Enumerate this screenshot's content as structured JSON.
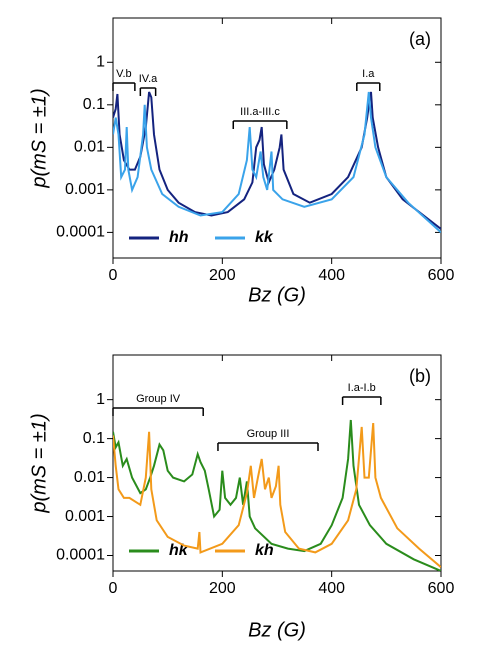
{
  "chart_data": [
    {
      "type": "line",
      "panel_label": "(a)",
      "x_label": "Bz (G)",
      "y_label": "p(mS = ±1)",
      "xlim": [
        0,
        600
      ],
      "xticks": [
        0,
        200,
        400,
        600
      ],
      "ylim": [
        2.5e-05,
        11
      ],
      "yticks": [
        1,
        0.1,
        0.01,
        0.001,
        0.0001
      ],
      "log_y": true,
      "legend": "lower left",
      "annotations": [
        {
          "text": "V.b",
          "x": [
            0,
            40
          ]
        },
        {
          "text": "IV.a",
          "x": [
            50,
            78
          ]
        },
        {
          "text": "III.a-III.c",
          "x": [
            220,
            318
          ]
        },
        {
          "text": "I.a",
          "x": [
            446,
            488
          ]
        }
      ],
      "series": [
        {
          "name": "hh",
          "color": "#14237f",
          "x": [
            0,
            5,
            8,
            12,
            20,
            30,
            40,
            50,
            60,
            66,
            70,
            75,
            85,
            100,
            120,
            150,
            180,
            210,
            240,
            255,
            262,
            268,
            272,
            276,
            285,
            295,
            305,
            308,
            312,
            330,
            360,
            400,
            430,
            455,
            465,
            470,
            472,
            475,
            485,
            500,
            530,
            560,
            600
          ],
          "values": [
            0.05,
            0.08,
            0.18,
            0.02,
            0.005,
            0.003,
            0.003,
            0.006,
            0.03,
            0.2,
            0.15,
            0.02,
            0.003,
            0.001,
            0.0005,
            0.0003,
            0.00025,
            0.0003,
            0.0006,
            0.0015,
            0.01,
            0.015,
            0.03,
            0.004,
            0.0015,
            0.003,
            0.01,
            0.02,
            0.003,
            0.0008,
            0.0005,
            0.0008,
            0.002,
            0.01,
            0.05,
            0.15,
            0.2,
            0.05,
            0.01,
            0.002,
            0.0006,
            0.0003,
            0.00012
          ]
        },
        {
          "name": "kk",
          "color": "#3aa3ea",
          "x": [
            0,
            5,
            10,
            15,
            22,
            25,
            28,
            35,
            45,
            55,
            58,
            62,
            70,
            90,
            120,
            160,
            200,
            230,
            245,
            250,
            255,
            262,
            270,
            275,
            282,
            290,
            293,
            310,
            350,
            400,
            440,
            460,
            468,
            472,
            480,
            500,
            540,
            600
          ],
          "values": [
            0.02,
            0.05,
            0.02,
            0.002,
            0.003,
            0.03,
            0.003,
            0.001,
            0.002,
            0.02,
            0.1,
            0.01,
            0.003,
            0.0008,
            0.0004,
            0.00025,
            0.0003,
            0.0008,
            0.005,
            0.03,
            0.003,
            0.002,
            0.008,
            0.002,
            0.001,
            0.008,
            0.001,
            0.0006,
            0.0004,
            0.0006,
            0.002,
            0.02,
            0.2,
            0.05,
            0.01,
            0.002,
            0.0005,
            0.0001
          ]
        }
      ]
    },
    {
      "type": "line",
      "panel_label": "(b)",
      "x_label": "Bz (G)",
      "y_label": "p(mS = ±1)",
      "xlim": [
        0,
        600
      ],
      "xticks": [
        0,
        200,
        400,
        600
      ],
      "ylim": [
        4e-05,
        14
      ],
      "yticks": [
        1,
        0.1,
        0.01,
        0.001,
        0.0001
      ],
      "log_y": true,
      "legend": "lower left",
      "annotations": [
        {
          "text": "Group IV",
          "x": [
            0,
            165
          ]
        },
        {
          "text": "Group III",
          "x": [
            192,
            375
          ]
        },
        {
          "text": "I.a-I.b",
          "x": [
            420,
            490
          ]
        }
      ],
      "series": [
        {
          "name": "hk",
          "color": "#2a8c1c",
          "x": [
            0,
            5,
            10,
            18,
            25,
            35,
            50,
            60,
            68,
            75,
            85,
            92,
            100,
            110,
            130,
            145,
            155,
            160,
            168,
            175,
            185,
            195,
            200,
            205,
            215,
            225,
            232,
            238,
            245,
            250,
            260,
            290,
            320,
            350,
            380,
            400,
            420,
            430,
            435,
            440,
            450,
            470,
            500,
            550,
            600
          ],
          "values": [
            0.15,
            0.06,
            0.08,
            0.02,
            0.03,
            0.01,
            0.004,
            0.005,
            0.01,
            0.02,
            0.07,
            0.05,
            0.015,
            0.01,
            0.008,
            0.012,
            0.04,
            0.025,
            0.015,
            0.005,
            0.001,
            0.0015,
            0.015,
            0.003,
            0.002,
            0.003,
            0.01,
            0.002,
            0.008,
            0.001,
            0.0005,
            0.0002,
            0.00015,
            0.00013,
            0.0002,
            0.0006,
            0.003,
            0.03,
            0.3,
            0.02,
            0.002,
            0.0006,
            0.0002,
            8e-05,
            4e-05
          ]
        },
        {
          "name": "kh",
          "color": "#f39a1a",
          "x": [
            0,
            5,
            10,
            20,
            30,
            50,
            60,
            66,
            70,
            80,
            100,
            130,
            155,
            158,
            160,
            200,
            230,
            245,
            252,
            258,
            265,
            272,
            278,
            285,
            290,
            298,
            303,
            306,
            315,
            340,
            370,
            400,
            430,
            445,
            455,
            460,
            468,
            476,
            480,
            490,
            520,
            560,
            600
          ],
          "values": [
            0.12,
            0.02,
            0.005,
            0.003,
            0.003,
            0.002,
            0.01,
            0.15,
            0.005,
            0.0008,
            0.0003,
            0.00018,
            0.00015,
            0.0004,
            0.00012,
            0.0002,
            0.0006,
            0.004,
            0.02,
            0.003,
            0.01,
            0.03,
            0.005,
            0.01,
            0.003,
            0.006,
            0.02,
            0.002,
            0.0004,
            0.00015,
            0.00012,
            0.0002,
            0.0008,
            0.005,
            0.2,
            0.01,
            0.01,
            0.25,
            0.01,
            0.003,
            0.0005,
            0.00015,
            5e-05
          ]
        }
      ]
    }
  ]
}
